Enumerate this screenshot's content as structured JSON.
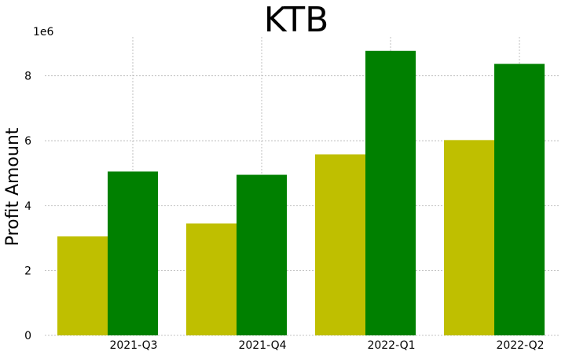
{
  "chart_data": {
    "type": "bar",
    "title": "KTB",
    "ylabel": "Profit Amount",
    "xlabel": "",
    "y_offset_label": "1e6",
    "categories": [
      "2021-Q3",
      "2021-Q4",
      "2022-Q1",
      "2022-Q2"
    ],
    "series": [
      {
        "values": [
          3.05,
          3.45,
          5.58,
          6.02
        ],
        "color": "#bfbf00"
      },
      {
        "values": [
          5.05,
          4.95,
          8.77,
          8.37
        ],
        "color": "#008000"
      }
    ],
    "ylim": [
      0,
      9.2
    ],
    "yticks": [
      0,
      2,
      4,
      6,
      8
    ],
    "grid": true
  }
}
